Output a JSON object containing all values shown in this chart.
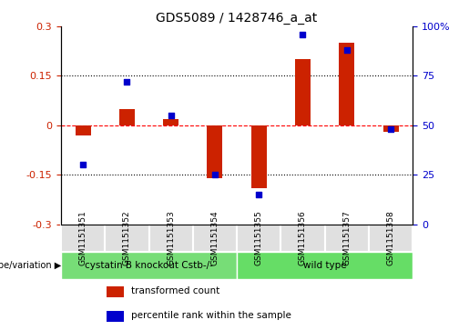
{
  "title": "GDS5089 / 1428746_a_at",
  "samples": [
    "GSM1151351",
    "GSM1151352",
    "GSM1151353",
    "GSM1151354",
    "GSM1151355",
    "GSM1151356",
    "GSM1151357",
    "GSM1151358"
  ],
  "bar_values": [
    -0.03,
    0.05,
    0.02,
    -0.16,
    -0.19,
    0.2,
    0.25,
    -0.02
  ],
  "dot_values": [
    30,
    72,
    55,
    25,
    15,
    96,
    88,
    48
  ],
  "ylim_left": [
    -0.3,
    0.3
  ],
  "ylim_right": [
    0,
    100
  ],
  "yticks_left": [
    -0.3,
    -0.15,
    0,
    0.15,
    0.3
  ],
  "yticks_right": [
    0,
    25,
    50,
    75,
    100
  ],
  "ytick_labels_left": [
    "-0.3",
    "-0.15",
    "0",
    "0.15",
    "0.3"
  ],
  "ytick_labels_right": [
    "0",
    "25",
    "50",
    "75",
    "100%"
  ],
  "hlines": [
    0.15,
    0.0,
    -0.15
  ],
  "hline_styles": [
    "dotted",
    "dashed",
    "dotted"
  ],
  "hline_colors": [
    "black",
    "red",
    "black"
  ],
  "bar_color": "#cc2200",
  "dot_color": "#0000cc",
  "groups": [
    {
      "label": "cystatin B knockout Cstb-/-",
      "span": [
        0,
        4
      ],
      "color": "#77dd77"
    },
    {
      "label": "wild type",
      "span": [
        4,
        8
      ],
      "color": "#66dd66"
    }
  ],
  "group_row_label": "genotype/variation",
  "legend_items": [
    {
      "color": "#cc2200",
      "label": "transformed count"
    },
    {
      "color": "#0000cc",
      "label": "percentile rank within the sample"
    }
  ],
  "bar_width": 0.35,
  "background_color": "#ffffff",
  "plot_bg": "#ffffff",
  "axis_label_color_left": "#cc2200",
  "axis_label_color_right": "#0000cc",
  "grid_color": "#dddddd"
}
